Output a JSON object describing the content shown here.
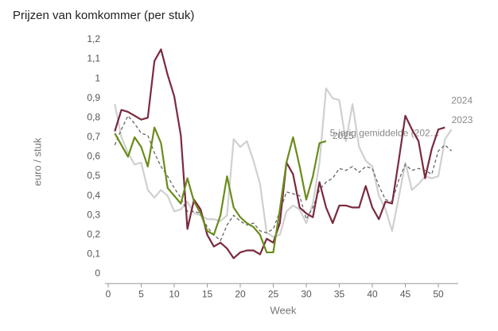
{
  "chart_data": {
    "type": "line",
    "title": "Prijzen van komkommer (per stuk)",
    "x_label": "Week",
    "y_label": "euro / stuk",
    "x": [
      1,
      2,
      3,
      4,
      5,
      6,
      7,
      8,
      9,
      10,
      11,
      12,
      13,
      14,
      15,
      16,
      17,
      18,
      19,
      20,
      21,
      22,
      23,
      24,
      25,
      26,
      27,
      28,
      29,
      30,
      31,
      32,
      33,
      34,
      35,
      36,
      37,
      38,
      39,
      40,
      41,
      42,
      43,
      44,
      45,
      46,
      47,
      48,
      49,
      50,
      51,
      52
    ],
    "xlim": [
      0,
      53
    ],
    "xticks": [
      0,
      5,
      10,
      15,
      20,
      25,
      30,
      35,
      40,
      45,
      50
    ],
    "ylim": [
      -0.05,
      1.22
    ],
    "yticks": [
      0,
      {
        "value": 0.1,
        "label": "0,1"
      },
      {
        "value": 0.2,
        "label": "0,2"
      },
      {
        "value": 0.3,
        "label": "0,3"
      },
      {
        "value": 0.4,
        "label": "0,4"
      },
      {
        "value": 0.5,
        "label": "0,5"
      },
      {
        "value": 0.6,
        "label": "0,6"
      },
      {
        "value": 0.7,
        "label": "0,7"
      },
      {
        "value": 0.8,
        "label": "0,8"
      },
      {
        "value": 0.9,
        "label": "0,9"
      },
      1,
      {
        "value": 1.1,
        "label": "1,1"
      },
      {
        "value": 1.2,
        "label": "1,2"
      }
    ],
    "series": [
      {
        "name": "2023",
        "color": "#d0d0d0",
        "dashed": false,
        "values": [
          0.87,
          0.7,
          0.62,
          0.56,
          0.57,
          0.43,
          0.39,
          0.43,
          0.4,
          0.32,
          0.33,
          0.37,
          0.31,
          0.3,
          0.28,
          0.28,
          0.27,
          0.3,
          0.69,
          0.65,
          0.68,
          0.58,
          0.46,
          0.21,
          0.19,
          0.2,
          0.32,
          0.35,
          0.33,
          0.26,
          0.36,
          0.57,
          0.95,
          0.9,
          0.89,
          0.68,
          0.87,
          0.65,
          0.58,
          0.55,
          0.4,
          0.33,
          0.22,
          0.39,
          0.57,
          0.43,
          0.46,
          0.5,
          0.49,
          0.5,
          0.69,
          0.74
        ]
      },
      {
        "name": "5-jarig gemiddelde (202…",
        "color": "#666666",
        "dashed": true,
        "values": [
          0.66,
          0.74,
          0.81,
          0.77,
          0.72,
          0.71,
          0.62,
          0.55,
          0.5,
          0.44,
          0.39,
          0.32,
          0.32,
          0.31,
          0.24,
          0.2,
          0.17,
          0.25,
          0.3,
          0.27,
          0.25,
          0.26,
          0.22,
          0.21,
          0.23,
          0.32,
          0.42,
          0.41,
          0.4,
          0.28,
          0.34,
          0.43,
          0.47,
          0.49,
          0.54,
          0.53,
          0.55,
          0.52,
          0.55,
          0.54,
          0.45,
          0.38,
          0.37,
          0.48,
          0.56,
          0.53,
          0.54,
          0.53,
          0.51,
          0.63,
          0.66,
          0.63
        ]
      },
      {
        "name": "2024",
        "color": "#7a2a3e",
        "dashed": false,
        "values": [
          0.73,
          0.84,
          0.83,
          0.81,
          0.79,
          0.8,
          1.09,
          1.15,
          1.02,
          0.91,
          0.71,
          0.23,
          0.38,
          0.33,
          0.2,
          0.14,
          0.16,
          0.13,
          0.08,
          0.11,
          0.12,
          0.12,
          0.1,
          0.18,
          0.16,
          0.26,
          0.57,
          0.51,
          0.34,
          0.31,
          0.29,
          0.47,
          0.34,
          0.26,
          0.35,
          0.35,
          0.34,
          0.34,
          0.45,
          0.34,
          0.28,
          0.37,
          0.36,
          0.58,
          0.81,
          0.74,
          0.68,
          0.49,
          0.64,
          0.74,
          0.75,
          null
        ]
      },
      {
        "name": "2025",
        "color": "#6a8c1a",
        "dashed": false,
        "values": [
          0.72,
          0.66,
          0.6,
          0.7,
          0.65,
          0.55,
          0.75,
          0.67,
          0.44,
          0.4,
          0.36,
          0.49,
          0.37,
          0.31,
          0.22,
          0.2,
          0.3,
          0.5,
          0.34,
          0.29,
          0.26,
          0.24,
          0.2,
          0.11,
          0.11,
          0.33,
          0.57,
          0.7,
          0.55,
          0.38,
          0.5,
          0.67,
          0.68,
          null,
          null,
          null,
          null,
          null,
          null,
          null,
          null,
          null,
          null,
          null,
          null,
          null,
          null,
          null,
          null,
          null,
          null,
          null
        ]
      }
    ]
  }
}
